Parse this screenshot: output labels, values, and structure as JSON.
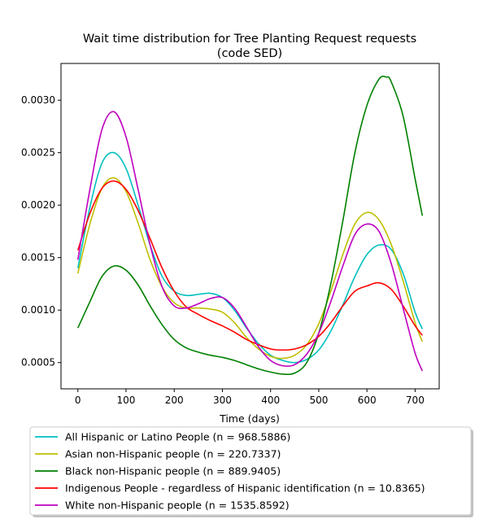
{
  "chart_data": {
    "type": "line",
    "title_line1": "Wait time distribution  for Tree Planting Request  requests",
    "title_line2": "(code SED)",
    "xlabel": "Time (days)",
    "ylabel": "",
    "xlim": [
      -35,
      750
    ],
    "ylim": [
      0.00025,
      0.00335
    ],
    "x_ticks": [
      0,
      100,
      200,
      300,
      400,
      500,
      600,
      700
    ],
    "y_ticks": [
      0.0005,
      0.001,
      0.0015,
      0.002,
      0.0025,
      0.003
    ],
    "y_tick_labels": [
      "0.0005",
      "0.0010",
      "0.0015",
      "0.0020",
      "0.0025",
      "0.0030"
    ],
    "grid": false,
    "legend_position": "below",
    "series": [
      {
        "name": "All Hispanic or Latino People (n = 968.5886)",
        "color": "#00bfbf",
        "x": [
          0,
          25,
          50,
          75,
          100,
          125,
          150,
          175,
          200,
          225,
          250,
          275,
          300,
          325,
          350,
          375,
          400,
          425,
          450,
          475,
          500,
          525,
          550,
          575,
          600,
          625,
          650,
          675,
          700,
          715
        ],
        "y": [
          0.0014,
          0.00198,
          0.0024,
          0.0025,
          0.00235,
          0.002,
          0.00162,
          0.00132,
          0.00118,
          0.00114,
          0.00115,
          0.00116,
          0.00112,
          0.001,
          0.00083,
          0.00068,
          0.00057,
          0.00052,
          0.0005,
          0.00053,
          0.00062,
          0.0008,
          0.00105,
          0.00132,
          0.00153,
          0.00162,
          0.00158,
          0.00135,
          0.00098,
          0.00082
        ]
      },
      {
        "name": "Asian non-Hispanic people (n = 220.7337)",
        "color": "#bfbf00",
        "x": [
          0,
          25,
          50,
          75,
          100,
          125,
          150,
          175,
          200,
          225,
          250,
          275,
          300,
          325,
          350,
          375,
          400,
          425,
          450,
          475,
          500,
          525,
          550,
          575,
          600,
          625,
          650,
          675,
          700,
          715
        ],
        "y": [
          0.00135,
          0.00182,
          0.00216,
          0.00226,
          0.00213,
          0.00183,
          0.00148,
          0.00122,
          0.00107,
          0.00102,
          0.00102,
          0.00101,
          0.00098,
          0.00088,
          0.00074,
          0.00063,
          0.00056,
          0.00054,
          0.00057,
          0.00067,
          0.00087,
          0.00118,
          0.00153,
          0.00182,
          0.00193,
          0.00186,
          0.00163,
          0.00128,
          0.00088,
          0.0007
        ]
      },
      {
        "name": "Black non-Hispanic people (n = 889.9405)",
        "color": "#008000",
        "x": [
          0,
          25,
          50,
          75,
          100,
          125,
          150,
          175,
          200,
          225,
          250,
          275,
          300,
          325,
          350,
          375,
          400,
          425,
          450,
          475,
          500,
          525,
          550,
          575,
          600,
          625,
          640,
          650,
          675,
          700,
          715
        ],
        "y": [
          0.00083,
          0.00108,
          0.00132,
          0.00142,
          0.00138,
          0.00124,
          0.00104,
          0.00086,
          0.00072,
          0.00064,
          0.0006,
          0.00057,
          0.00055,
          0.00052,
          0.00048,
          0.00044,
          0.00041,
          0.00039,
          0.0004,
          0.0005,
          0.00078,
          0.00125,
          0.00185,
          0.0025,
          0.00295,
          0.0032,
          0.00322,
          0.00318,
          0.00285,
          0.00225,
          0.0019
        ]
      },
      {
        "name": "Indigenous People - regardless of Hispanic identification (n = 10.8365)",
        "color": "#ff0000",
        "x": [
          0,
          25,
          50,
          75,
          100,
          125,
          150,
          175,
          200,
          225,
          250,
          275,
          300,
          325,
          350,
          375,
          400,
          425,
          450,
          475,
          500,
          525,
          550,
          575,
          600,
          625,
          650,
          675,
          700,
          715
        ],
        "y": [
          0.00157,
          0.00192,
          0.00216,
          0.00223,
          0.00215,
          0.00195,
          0.00168,
          0.0014,
          0.00118,
          0.00103,
          0.00096,
          0.0009,
          0.00085,
          0.00079,
          0.00072,
          0.00067,
          0.00063,
          0.00062,
          0.00063,
          0.00067,
          0.00075,
          0.00088,
          0.00104,
          0.00118,
          0.00123,
          0.00126,
          0.0012,
          0.00104,
          0.00085,
          0.00076
        ]
      },
      {
        "name": "White non-Hispanic people (n = 1535.8592)",
        "color": "#bf00bf",
        "x": [
          0,
          25,
          50,
          75,
          100,
          125,
          150,
          175,
          200,
          225,
          250,
          275,
          300,
          325,
          350,
          375,
          400,
          425,
          450,
          475,
          500,
          525,
          550,
          575,
          600,
          625,
          650,
          675,
          700,
          715
        ],
        "y": [
          0.00148,
          0.00215,
          0.00272,
          0.00289,
          0.00265,
          0.00215,
          0.00162,
          0.00122,
          0.00104,
          0.00102,
          0.00106,
          0.00111,
          0.00112,
          0.00102,
          0.00084,
          0.00065,
          0.00052,
          0.00047,
          0.00048,
          0.00058,
          0.00078,
          0.00108,
          0.00142,
          0.00172,
          0.00182,
          0.00175,
          0.00145,
          0.00102,
          0.00059,
          0.00042
        ]
      }
    ]
  }
}
